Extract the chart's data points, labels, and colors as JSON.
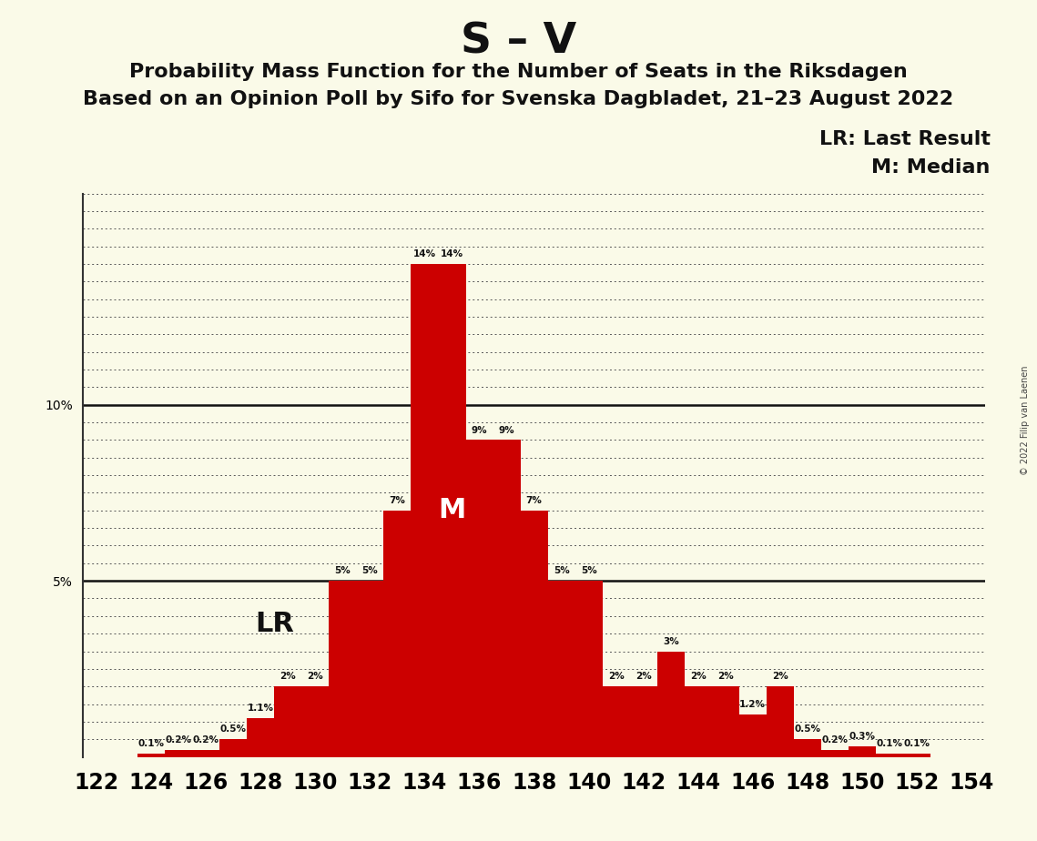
{
  "title": "S – V",
  "subtitle1": "Probability Mass Function for the Number of Seats in the Riksdagen",
  "subtitle2": "Based on an Opinion Poll by Sifo for Svenska Dagbladet, 21–23 August 2022",
  "copyright": "© 2022 Filip van Laenen",
  "lr_label": "LR: Last Result",
  "m_label": "M: Median",
  "background_color": "#FAFAE8",
  "bar_color": "#CC0000",
  "seat_values": {
    "122": 0.0,
    "123": 0.0,
    "124": 0.1,
    "125": 0.2,
    "126": 0.2,
    "127": 0.5,
    "128": 1.1,
    "129": 2.0,
    "130": 2.0,
    "131": 5.0,
    "132": 5.0,
    "133": 7.0,
    "134": 14.0,
    "135": 14.0,
    "136": 9.0,
    "137": 9.0,
    "138": 7.0,
    "139": 5.0,
    "140": 5.0,
    "141": 2.0,
    "142": 2.0,
    "143": 3.0,
    "144": 2.0,
    "145": 2.0,
    "146": 1.2,
    "147": 2.0,
    "148": 0.5,
    "149": 0.2,
    "150": 0.3,
    "151": 0.1,
    "152": 0.1,
    "153": 0.0,
    "154": 0.0
  },
  "lr_seat": 129,
  "median_seat": 135,
  "ylim": [
    0,
    16
  ],
  "xlabel_seats": [
    122,
    124,
    126,
    128,
    130,
    132,
    134,
    136,
    138,
    140,
    142,
    144,
    146,
    148,
    150,
    152,
    154
  ]
}
